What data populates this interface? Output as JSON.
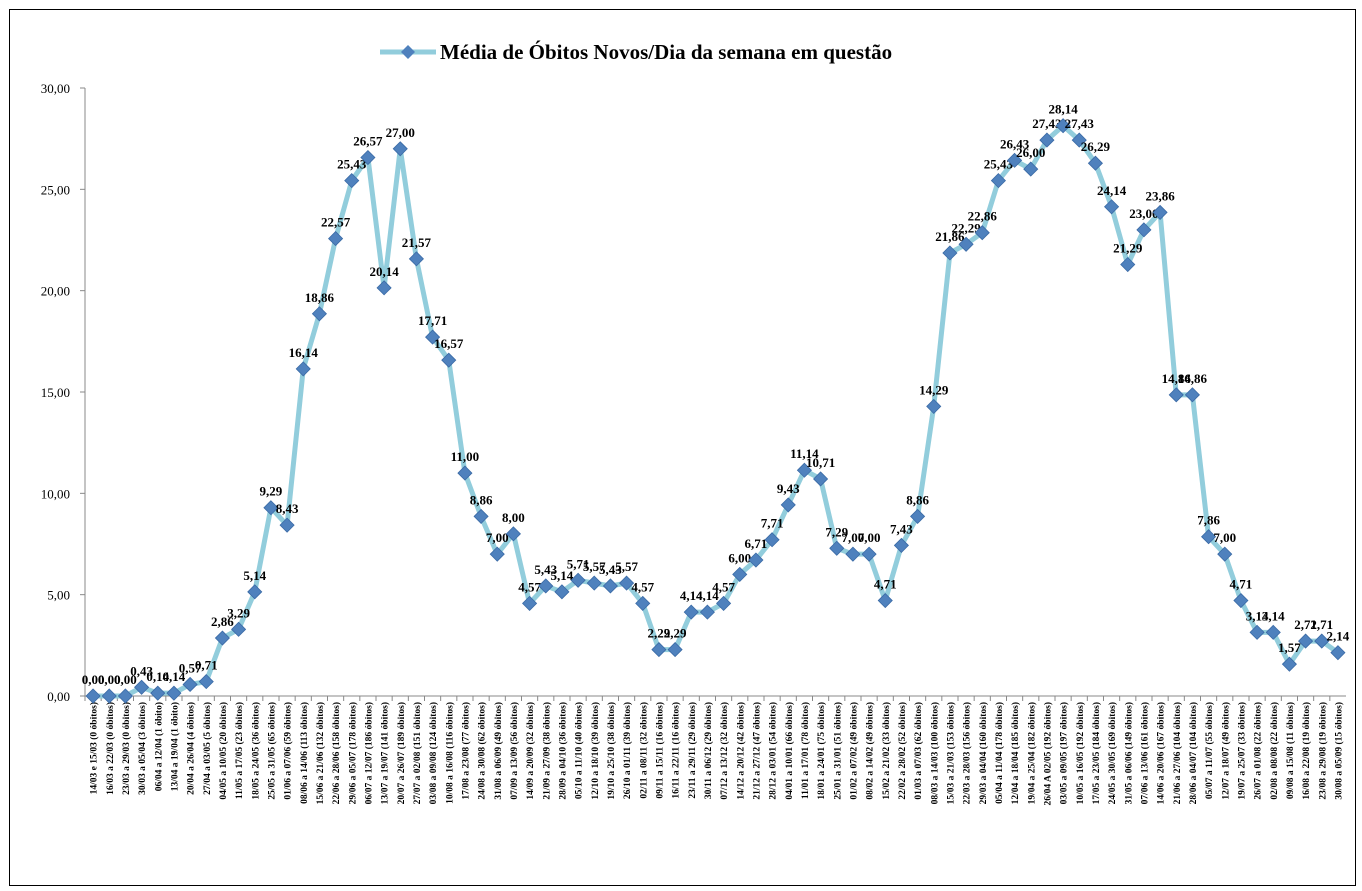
{
  "chart_data": {
    "type": "line",
    "categories": [
      "14/03 e 15/03 (0 óbitos)",
      "16/03 a 22/03 (0 óbitos)",
      "23/03 a 29/03 (0 óbitos)",
      "30/03 a 05/04 (3 óbitos)",
      "06/04 a 12/04 (1 óbito)",
      "13/04 a 19/04 (1 óbito)",
      "20/04 a 26/04 (4 óbitos)",
      "27/04 a 03/05 (5 óbitos)",
      "04/05 a 10/05 (20 óbitos)",
      "11/05 a 17/05 (23 óbitos)",
      "18/05 a 24/05 (36 óbitos)",
      "25/05 a 31/05 (65 óbitos)",
      "01/06 a 07/06 (59 óbitos)",
      "08/06 a 14/06 (113 óbitos)",
      "15/06 a 21/06 (132 óbitos)",
      "22/06 a 28/06 (158 óbitos)",
      "29/06 a 05/07 (178 óbitos)",
      "06/07 a 12/07 (186 óbitos)",
      "13/07 a 19/07 (141 óbitos)",
      "20/07 a 26/07 (189 óbitos)",
      "27/07 a 02/08 (151 óbitos)",
      "03/08 a 09/08 (124 óbitos)",
      "10/08 a 16/08 (116 óbitos)",
      "17/08 a 23/08 (77 óbitos)",
      "24/08 a 30/08 (62 óbitos)",
      "31/08 a 06/09 (49 óbitos)",
      "07/09 a 13/09 (56 óbitos)",
      "14/09 a 20/09 (32 óbitos)",
      "21/09 a 27/09 (38 óbitos)",
      "28/09 a 04/10 (36 óbitos)",
      "05/10 a 11/10 (40 óbitos)",
      "12/10 a 18/10 (39 óbitos)",
      "19/10 a 25/10 (38 óbitos)",
      "26/10 a 01/11 (39 óbitos)",
      "02/11 a 08/11 (32 óbitos)",
      "09/11 a 15/11 (16 óbitos)",
      "16/11 a 22/11 (16 óbitos)",
      "23/11 a 29/11 (29 óbitos)",
      "30/11 a 06/12 (29 óbitos)",
      "07/12 a 13/12 (32 óbitos)",
      "14/12 a 20/12 (42 óbitos)",
      "21/12 a 27/12 (47 óbitos)",
      "28/12 a 03/01 (54 óbitos)",
      "04/01 a 10/01 (66 óbitos)",
      "11/01 a 17/01 (78 óbitos)",
      "18/01 a 24/01 (75 óbitos)",
      "25/01 a 31/01 (51 óbitos)",
      "01/02 a 07/02 (49 óbitos)",
      "08/02 a 14/02 (49 óbitos)",
      "15/02 a 21/02 (33 óbitos)",
      "22/02 a 28/02 (52 óbitos)",
      "01/03 a 07/03 (62 óbitos)",
      "08/03 a 14/03 (100 óbitos)",
      "15/03 a 21/03 (153 óbitos)",
      "22/03 a 28/03 (156 óbitos)",
      "29/03 a 04/04 (160 óbitos)",
      "05/04 a 11/04 (178 óbitos)",
      "12/04 a 18/04 (185 óbitos)",
      "19/04 a 25/04 (182 óbitos)",
      "26/04 A 02/05 (192 óbitos)",
      "03/05 a 09/05 (197 óbitos)",
      "10/05 a 16/05 (192 óbitos)",
      "17/05 a 23/05 (184 óbitos)",
      "24/05 a 30/05 (169 óbitos)",
      "31/05 a 06/06 (149 óbitos)",
      "07/06 a 13/06 (161 óbitos)",
      "14/06 a 20/06 (167 óbitos)",
      "21/06 a 27/06 (104 óbitos)",
      "28/06 a 04/07 (104 óbitos)",
      "05/07 a 11/07 (55 óbitos)",
      "12/07 a 18/07 (49 óbitos)",
      "19/07 a 25/07 (33 óbitos)",
      "26/07 a 01/08 (22 óbitos)",
      "02/08 a 08/08 (22 óbitos)",
      "09/08 a 15/08 (11 óbitos)",
      "16/08 a 22/08 (19 óbitos)",
      "23/08 a 29/08 (19 óbitos)",
      "30/08 a 05/09 (15 óbitos)"
    ],
    "series": [
      {
        "name": "Média de Óbitos Novos/Dia da semana em questão",
        "color": "#92cddc",
        "marker_color": "#4f81bd",
        "values": [
          0,
          0,
          0,
          0.43,
          0.14,
          0.14,
          0.57,
          0.71,
          2.86,
          3.29,
          5.14,
          9.29,
          8.43,
          16.14,
          18.86,
          22.57,
          25.43,
          26.57,
          20.14,
          27.0,
          21.57,
          17.71,
          16.57,
          11.0,
          8.86,
          7.0,
          8.0,
          4.57,
          5.43,
          5.14,
          5.71,
          5.57,
          5.43,
          5.57,
          4.57,
          2.29,
          2.29,
          4.14,
          4.14,
          4.57,
          6.0,
          6.71,
          7.71,
          9.43,
          11.14,
          10.71,
          7.29,
          7.0,
          7.0,
          4.71,
          7.43,
          8.86,
          14.29,
          21.86,
          22.29,
          22.86,
          25.43,
          26.43,
          26.0,
          27.43,
          28.14,
          27.43,
          26.29,
          24.14,
          21.29,
          23.0,
          23.86,
          14.86,
          14.86,
          7.86,
          7.0,
          4.71,
          3.14,
          3.14,
          1.57,
          2.71,
          2.71,
          2.14
        ],
        "value_labels": [
          "0,00",
          "0,00",
          "0,00",
          "0,43",
          "0,14",
          "0,14",
          "0,57",
          "0,71",
          "2,86",
          "3,29",
          "5,14",
          "9,29",
          "8,43",
          "16,14",
          "18,86",
          "22,57",
          "25,43",
          "26,57",
          "20,14",
          "27,00",
          "21,57",
          "17,71",
          "16,57",
          "11,00",
          "8,86",
          "7,00",
          "8,00",
          "4,57",
          "5,43",
          "5,14",
          "5,71",
          "5,57",
          "5,43",
          "5,57",
          "4,57",
          "2,29",
          "2,29",
          "4,14",
          "4,14",
          "4,57",
          "6,00",
          "6,71",
          "7,71",
          "9,43",
          "11,14",
          "10,71",
          "7,29",
          "7,00",
          "7,00",
          "4,71",
          "7,43",
          "8,86",
          "14,29",
          "21,86",
          "22,29",
          "22,86",
          "25,43",
          "26,43",
          "26,00",
          "27,43",
          "28,14",
          "27,43",
          "26,29",
          "24,14",
          "21,29",
          "23,00",
          "23,86",
          "14,86",
          "14,86",
          "7,86",
          "7,00",
          "4,71",
          "3,14",
          "3,14",
          "1,57",
          "2,71",
          "2,71",
          "2,14"
        ]
      }
    ],
    "ylim": [
      0,
      30
    ],
    "yticks": [
      {
        "value": 0,
        "label": "0,00"
      },
      {
        "value": 5,
        "label": "5,00"
      },
      {
        "value": 10,
        "label": "10,00"
      },
      {
        "value": 15,
        "label": "15,00"
      },
      {
        "value": 20,
        "label": "20,00"
      },
      {
        "value": 25,
        "label": "25,00"
      },
      {
        "value": 30,
        "label": "30,00"
      }
    ],
    "legend": "top"
  }
}
